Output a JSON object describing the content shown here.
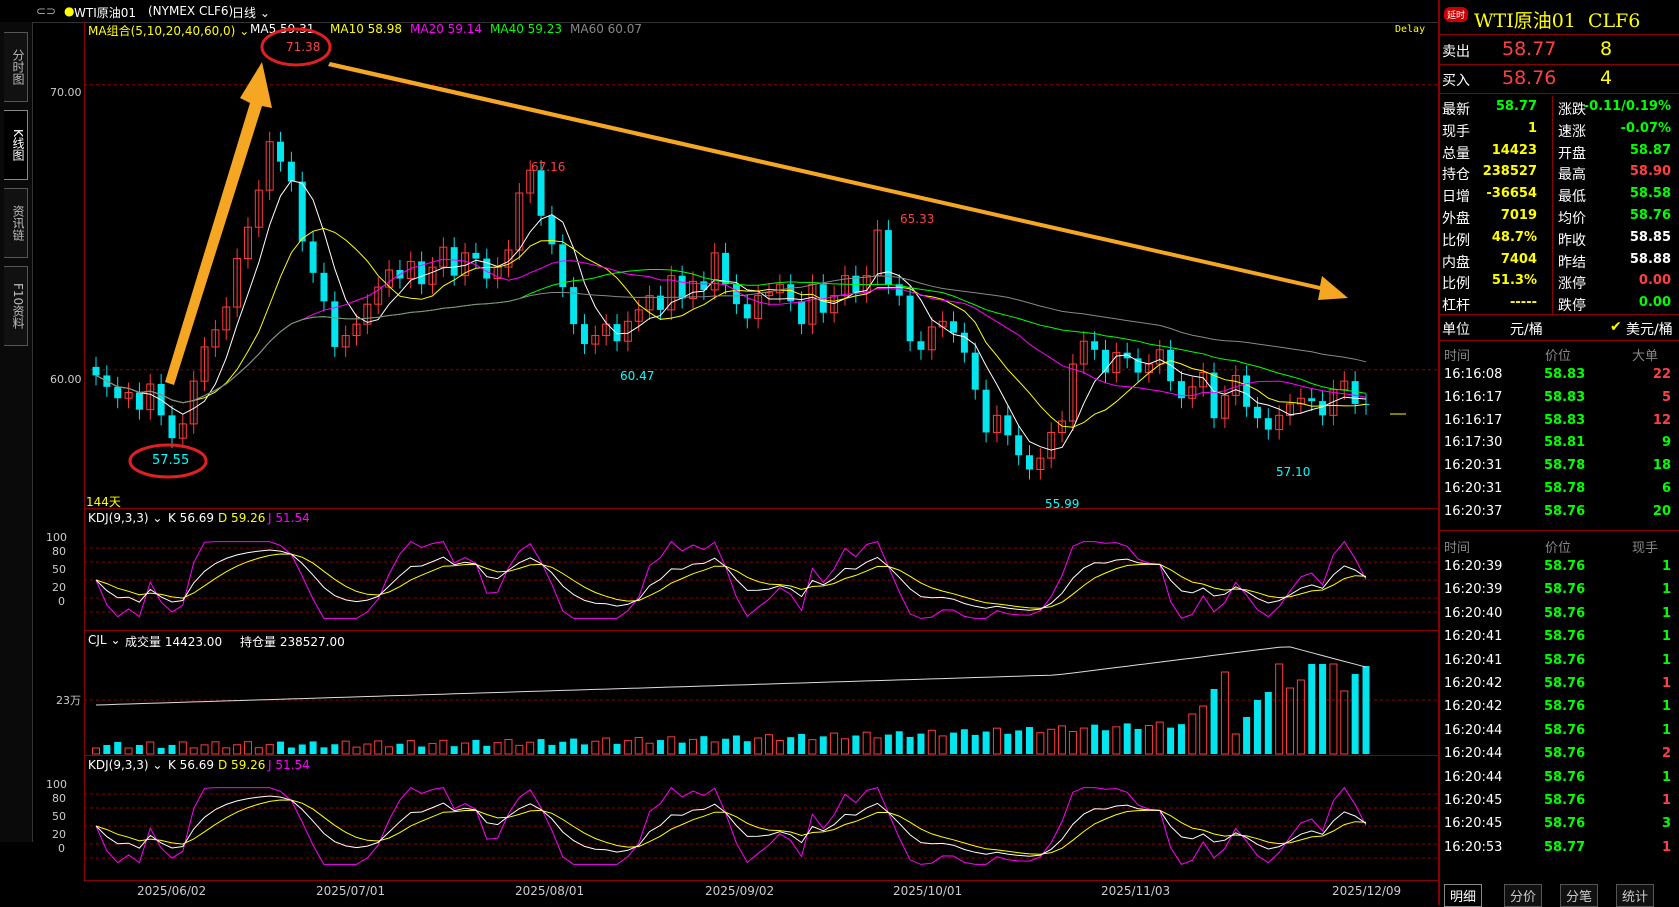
{
  "topbar": {
    "link_icon": "link-icon",
    "symbol": "WTI原油01",
    "exchange": "(NYMEX CLF6)",
    "period": "日线"
  },
  "left_tabs": [
    "分时图",
    "K线图",
    "资讯链",
    "F10资料"
  ],
  "main": {
    "ma_title": "MA组合(5,10,20,40,60,0)",
    "ma_items": [
      {
        "label": "MA5 59.31",
        "color": "#ffffff"
      },
      {
        "label": "MA10 58.98",
        "color": "#ffff00"
      },
      {
        "label": "MA20 59.14",
        "color": "#ff00ff"
      },
      {
        "label": "MA40 59.23",
        "color": "#00ff00"
      },
      {
        "label": "MA60 60.07",
        "color": "#888888"
      }
    ],
    "delay": "Delay",
    "days": "144天",
    "y_labels": [
      "70.00",
      "60.00"
    ],
    "annotations": [
      {
        "text": "71.38",
        "color": "#ff4040"
      },
      {
        "text": "67.16",
        "color": "#ff4040"
      },
      {
        "text": "65.33",
        "color": "#ff4040"
      },
      {
        "text": "60.47",
        "color": "#00ffff"
      },
      {
        "text": "57.55",
        "color": "#00ffff"
      },
      {
        "text": "55.99",
        "color": "#00ffff"
      },
      {
        "text": "57.10",
        "color": "#00ffff"
      }
    ]
  },
  "kdj1": {
    "title": "KDJ(9,3,3)",
    "k": "K 56.69",
    "d": "D 59.26",
    "j": "J 51.54",
    "y_labels": [
      "100",
      "80",
      "50",
      "20",
      "0"
    ]
  },
  "vol": {
    "title": "CJL",
    "volume": "成交量 14423.00",
    "oi": "持仓量 238527.00",
    "y_label": "23万"
  },
  "kdj2": {
    "title": "KDJ(9,3,3)",
    "k": "K 56.69",
    "d": "D 59.26",
    "j": "J 51.54",
    "y_labels": [
      "100",
      "80",
      "50",
      "20",
      "0"
    ]
  },
  "x_dates": [
    "2025/06/02",
    "2025/07/01",
    "2025/08/01",
    "2025/09/02",
    "2025/10/01",
    "2025/11/03",
    "2025/12/09"
  ],
  "chart_data": {
    "type": "candlestick",
    "title": "WTI原油01 (NYMEX CLF6)",
    "y_ticks": [
      60.0,
      70.0
    ],
    "ylim": [
      55.5,
      72.2
    ],
    "high_points": [
      71.38,
      67.16,
      65.33
    ],
    "low_points": [
      57.55,
      60.47,
      55.99,
      57.1
    ],
    "close_series_approx": [
      59.8,
      59.4,
      59.0,
      59.2,
      58.6,
      59.5,
      58.4,
      57.6,
      58.1,
      59.6,
      60.8,
      61.4,
      62.2,
      63.9,
      65.0,
      66.3,
      68.0,
      67.3,
      66.6,
      64.5,
      63.4,
      62.4,
      60.8,
      61.2,
      61.6,
      62.3,
      62.9,
      63.5,
      63.2,
      63.8,
      63.0,
      63.6,
      64.3,
      63.3,
      64.1,
      63.9,
      63.2,
      63.6,
      64.2,
      66.2,
      67.0,
      65.4,
      64.4,
      62.9,
      61.6,
      60.9,
      61.2,
      61.6,
      61.0,
      61.7,
      62.1,
      62.6,
      62.1,
      63.3,
      62.5,
      63.1,
      62.8,
      64.1,
      63.0,
      62.3,
      61.8,
      62.6,
      62.7,
      63.0,
      62.4,
      61.6,
      63.0,
      62.0,
      62.6,
      63.3,
      62.7,
      63.3,
      64.9,
      63.0,
      62.6,
      61.0,
      60.7,
      61.5,
      61.7,
      61.3,
      60.6,
      59.3,
      57.8,
      58.4,
      57.7,
      57.0,
      56.5,
      56.9,
      57.8,
      58.2,
      60.2,
      61.0,
      60.7,
      59.9,
      60.6,
      60.4,
      59.9,
      60.2,
      60.7,
      59.6,
      59.0,
      59.4,
      59.9,
      58.3,
      59.1,
      59.8,
      58.7,
      58.3,
      57.9,
      58.4,
      58.8,
      59.0,
      58.9,
      58.4,
      59.3,
      59.6,
      58.8,
      58.77
    ]
  },
  "right": {
    "badge": "延时",
    "title": "WTI原油01  CLF6",
    "sell_label": "卖出",
    "sell_price": "58.77",
    "sell_qty": "8",
    "buy_label": "买入",
    "buy_price": "58.76",
    "buy_qty": "4",
    "quote": [
      {
        "l": "最新",
        "v": "58.77",
        "vc": "#00ff00",
        "l2": "涨跌",
        "v2": "-0.11/0.19%",
        "v2c": "#00ff00"
      },
      {
        "l": "现手",
        "v": "1",
        "vc": "#ffff00",
        "l2": "速涨",
        "v2": "-0.07%",
        "v2c": "#00ff00"
      },
      {
        "l": "总量",
        "v": "14423",
        "vc": "#ffff00",
        "l2": "开盘",
        "v2": "58.87",
        "v2c": "#00ff00"
      },
      {
        "l": "持仓",
        "v": "238527",
        "vc": "#ffff00",
        "l2": "最高",
        "v2": "58.90",
        "v2c": "#ff4040"
      },
      {
        "l": "日增",
        "v": "-36654",
        "vc": "#ffff00",
        "l2": "最低",
        "v2": "58.58",
        "v2c": "#00ff00"
      },
      {
        "l": "外盘",
        "v": "7019",
        "vc": "#ffff00",
        "l2": "均价",
        "v2": "58.76",
        "v2c": "#00ff00"
      },
      {
        "l": "比例",
        "v": "48.7%",
        "vc": "#ffff00",
        "l2": "昨收",
        "v2": "58.85",
        "v2c": "#ffffff"
      },
      {
        "l": "内盘",
        "v": "7404",
        "vc": "#ffff00",
        "l2": "昨结",
        "v2": "58.88",
        "v2c": "#ffffff"
      },
      {
        "l": "比例",
        "v": "51.3%",
        "vc": "#ffff00",
        "l2": "涨停",
        "v2": "0.00",
        "v2c": "#ff4040"
      },
      {
        "l": "杠杆",
        "v": "-----",
        "vc": "#ffff00",
        "l2": "跌停",
        "v2": "0.00",
        "v2c": "#00ff00"
      }
    ],
    "unit_label": "单位",
    "unit_opt1": "元/桶",
    "unit_opt2": "美元/桶",
    "big_header": {
      "time": "时间",
      "price": "价位",
      "qty": "大单"
    },
    "big_orders": [
      {
        "t": "16:16:08",
        "p": "58.83",
        "q": "22",
        "qc": "#ff4040"
      },
      {
        "t": "16:16:17",
        "p": "58.83",
        "q": "5",
        "qc": "#ff4040"
      },
      {
        "t": "16:16:17",
        "p": "58.83",
        "q": "12",
        "qc": "#ff4040"
      },
      {
        "t": "16:17:30",
        "p": "58.81",
        "q": "9",
        "qc": "#00ff00"
      },
      {
        "t": "16:20:31",
        "p": "58.78",
        "q": "18",
        "qc": "#00ff00"
      },
      {
        "t": "16:20:31",
        "p": "58.78",
        "q": "6",
        "qc": "#00ff00"
      },
      {
        "t": "16:20:37",
        "p": "58.76",
        "q": "20",
        "qc": "#00ff00"
      }
    ],
    "tick_header": {
      "time": "时间",
      "price": "价位",
      "qty": "现手"
    },
    "ticks": [
      {
        "t": "16:20:39",
        "p": "58.76",
        "q": "1",
        "qc": "#00ff00"
      },
      {
        "t": "16:20:39",
        "p": "58.76",
        "q": "1",
        "qc": "#00ff00"
      },
      {
        "t": "16:20:40",
        "p": "58.76",
        "q": "1",
        "qc": "#00ff00"
      },
      {
        "t": "16:20:41",
        "p": "58.76",
        "q": "1",
        "qc": "#00ff00"
      },
      {
        "t": "16:20:41",
        "p": "58.76",
        "q": "1",
        "qc": "#00ff00"
      },
      {
        "t": "16:20:42",
        "p": "58.76",
        "q": "1",
        "qc": "#ff4040"
      },
      {
        "t": "16:20:42",
        "p": "58.76",
        "q": "1",
        "qc": "#00ff00"
      },
      {
        "t": "16:20:44",
        "p": "58.76",
        "q": "1",
        "qc": "#00ff00"
      },
      {
        "t": "16:20:44",
        "p": "58.76",
        "q": "2",
        "qc": "#ff4040"
      },
      {
        "t": "16:20:44",
        "p": "58.76",
        "q": "1",
        "qc": "#00ff00"
      },
      {
        "t": "16:20:45",
        "p": "58.76",
        "q": "1",
        "qc": "#ff4040"
      },
      {
        "t": "16:20:45",
        "p": "58.76",
        "q": "3",
        "qc": "#00ff00"
      },
      {
        "t": "16:20:53",
        "p": "58.77",
        "q": "1",
        "qc": "#ff4040"
      }
    ],
    "bottom_tabs": [
      "明细",
      "分价",
      "分笔",
      "统计"
    ]
  }
}
